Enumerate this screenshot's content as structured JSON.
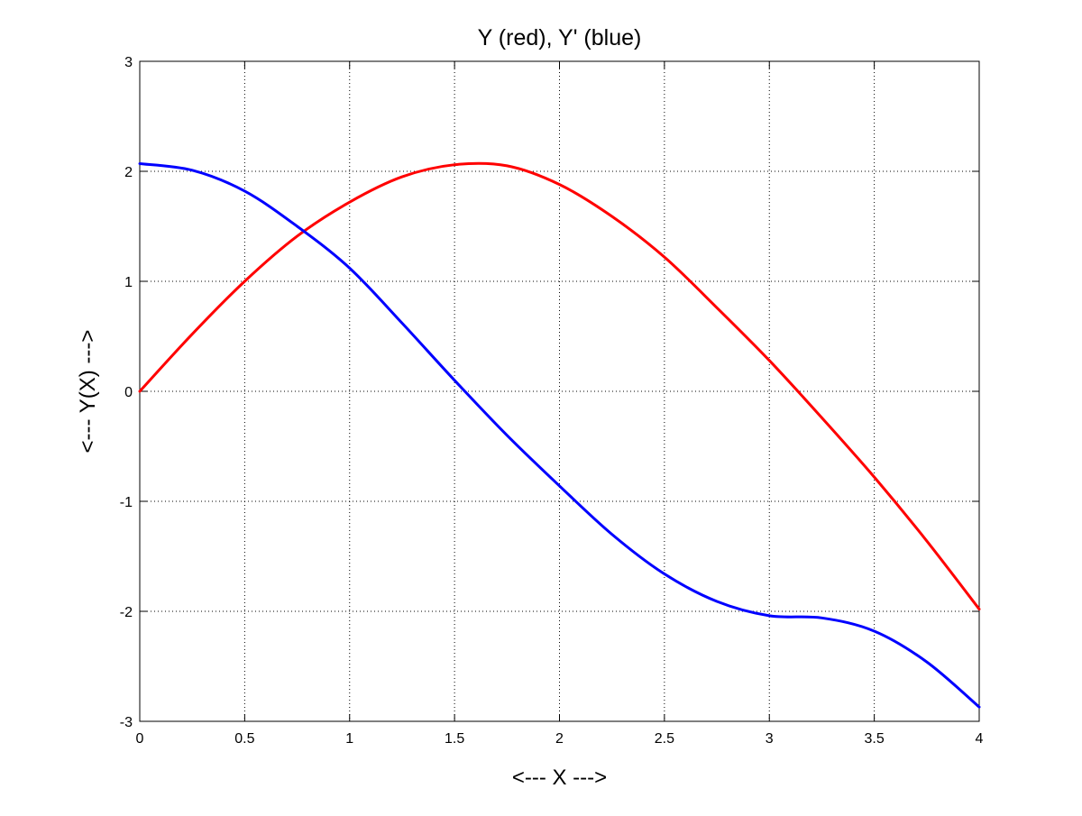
{
  "chart_data": {
    "type": "line",
    "title": "Y (red), Y' (blue)",
    "xlabel": "<--- X --->",
    "ylabel": "<--- Y(X) --->",
    "xlim": [
      0,
      4
    ],
    "ylim": [
      -3,
      3
    ],
    "x_ticks": [
      0,
      0.5,
      1,
      1.5,
      2,
      2.5,
      3,
      3.5,
      4
    ],
    "y_ticks": [
      -3,
      -2,
      -1,
      0,
      1,
      2,
      3
    ],
    "x_tick_labels": [
      "0",
      "0.5",
      "1",
      "1.5",
      "2",
      "2.5",
      "3",
      "3.5",
      "4"
    ],
    "y_tick_labels": [
      "-3",
      "-2",
      "-1",
      "0",
      "1",
      "2",
      "3"
    ],
    "grid": true,
    "x": [
      0,
      0.25,
      0.5,
      0.75,
      1,
      1.25,
      1.5,
      1.75,
      2,
      2.25,
      2.5,
      2.75,
      3,
      3.25,
      3.5,
      3.75,
      4
    ],
    "series": [
      {
        "color": "#ff0000",
        "values": [
          0.0,
          0.52,
          1.0,
          1.41,
          1.72,
          1.95,
          2.06,
          2.05,
          1.88,
          1.59,
          1.22,
          0.76,
          0.28,
          -0.24,
          -0.78,
          -1.36,
          -1.98
        ]
      },
      {
        "color": "#0000ff",
        "values": [
          2.07,
          2.01,
          1.82,
          1.5,
          1.12,
          0.62,
          0.1,
          -0.4,
          -0.86,
          -1.3,
          -1.66,
          -1.91,
          -2.04,
          -2.06,
          -2.18,
          -2.46,
          -2.87
        ]
      }
    ]
  }
}
